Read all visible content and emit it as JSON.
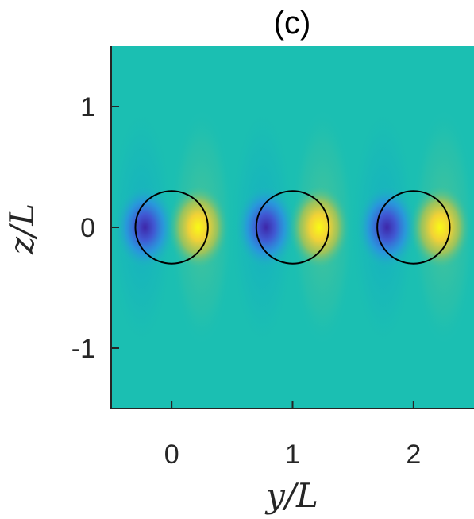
{
  "chart_data": {
    "type": "heatmap",
    "title": "(c)",
    "xlabel": "y/L",
    "ylabel": "z/L",
    "xlim": [
      -0.5,
      2.5
    ],
    "ylim": [
      -1.5,
      1.5
    ],
    "xticks": [
      0,
      1,
      2
    ],
    "xtick_labels": [
      "0",
      "1",
      "2"
    ],
    "yticks": [
      1,
      0,
      -1
    ],
    "ytick_labels": [
      "1",
      "0",
      "-1"
    ],
    "colormap": "parula",
    "background_color": "#1bbfb2",
    "field": "periodic dipole pattern: negative (blue) lobe at y-0.22, positive (yellow) lobe at y+0.22 around each circle center",
    "circles": [
      {
        "y": 0,
        "z": 0,
        "r": 0.3
      },
      {
        "y": 1,
        "z": 0,
        "r": 0.3
      },
      {
        "y": 2,
        "z": 0,
        "r": 0.3
      }
    ],
    "grid": false
  }
}
